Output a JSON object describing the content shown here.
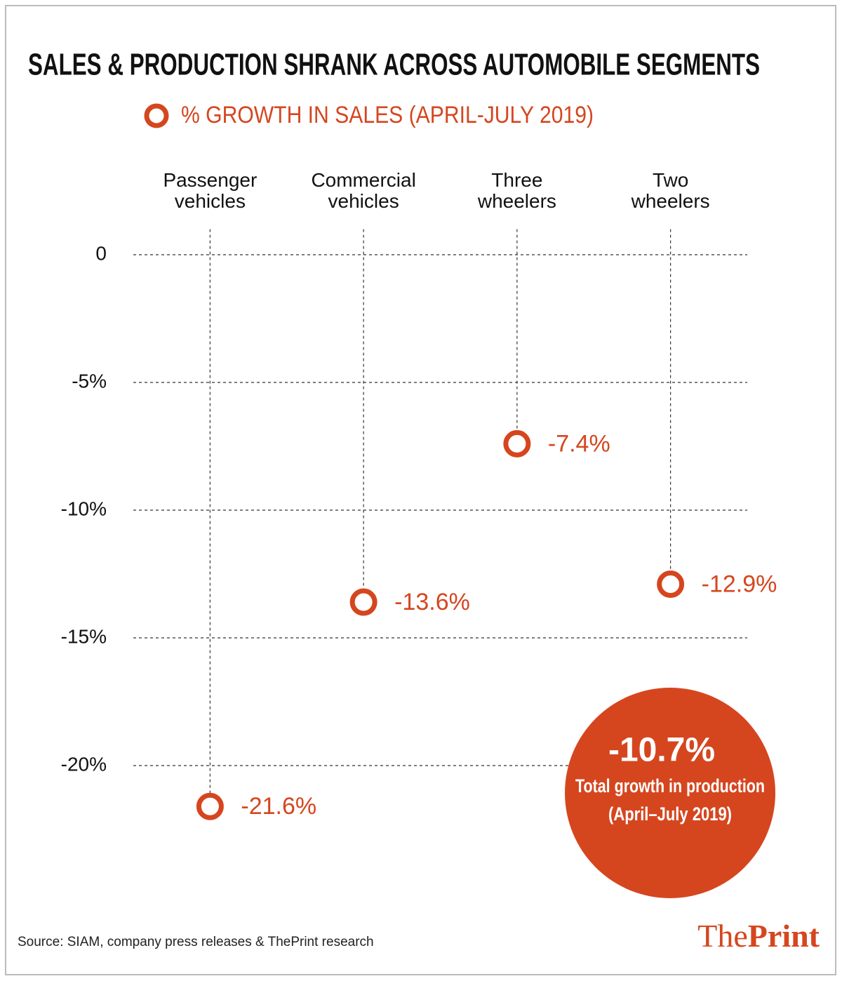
{
  "chart_data": {
    "type": "dot",
    "title": "SALES & PRODUCTION SHRANK ACROSS AUTOMOBILE SEGMENTS",
    "categories": [
      "Passenger vehicles",
      "Commercial vehicles",
      "Three wheelers",
      "Two wheelers"
    ],
    "series": [
      {
        "name": "% GROWTH IN SALES (APRIL-JULY 2019)",
        "color": "#d5461f",
        "values": [
          -21.6,
          -13.6,
          -7.4,
          -12.9
        ],
        "value_labels": [
          "-21.6%",
          "-13.6%",
          "-7.4%",
          "-12.9%"
        ]
      }
    ],
    "ylim": [
      -22.5,
      1
    ],
    "yticks": [
      0,
      {
        "value": -5,
        "label": "-5%"
      },
      {
        "value": -10,
        "label": "-10%"
      },
      {
        "value": -15,
        "label": "-15%"
      },
      {
        "value": -20,
        "label": "-20%"
      }
    ],
    "grid": true,
    "annotation": {
      "value": -10.7,
      "label": "-10.7%",
      "text": "Total growth in production",
      "subtext": "(April–July 2019)",
      "color": "#d5461f"
    },
    "source": "Source: SIAM, company press releases & ThePrint research",
    "logo": {
      "first": "The",
      "second": "Print"
    }
  }
}
